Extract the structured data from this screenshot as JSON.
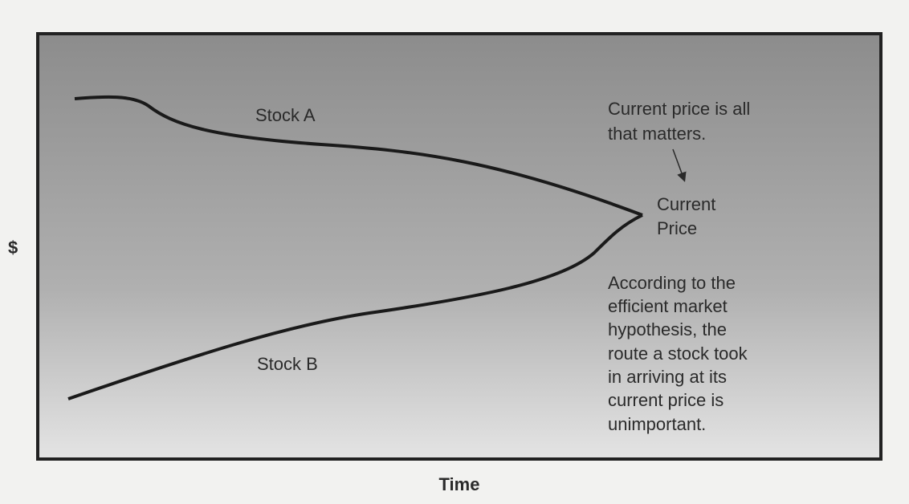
{
  "axes": {
    "y_label": "$",
    "x_label": "Time"
  },
  "curves": [
    {
      "label": "Stock A"
    },
    {
      "label": "Stock B"
    }
  ],
  "annotations": {
    "note": [
      "Current price is all",
      "that matters."
    ],
    "point": [
      "Current",
      "Price"
    ],
    "explanation": [
      "According to the",
      "efficient market",
      "hypothesis, the",
      "route a stock took",
      "in arriving at its",
      "current price is",
      "unimportant."
    ]
  }
}
